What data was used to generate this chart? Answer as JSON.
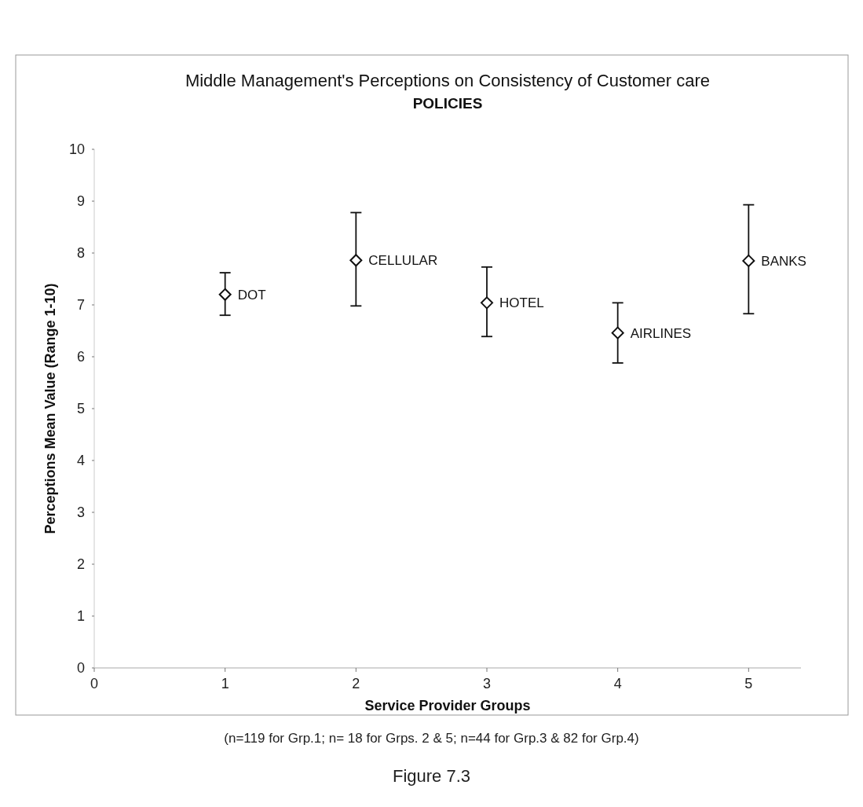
{
  "chart_data": {
    "type": "scatter",
    "title": "Middle Management's Perceptions on Consistency of Customer care\nPOLICIES",
    "xlabel": "Service Provider Groups",
    "ylabel": "Perceptions Mean Value (Range 1-10)",
    "x": [
      1,
      2,
      3,
      4,
      5
    ],
    "values": [
      7.2,
      7.86,
      7.04,
      6.46,
      7.85
    ],
    "errors": [
      [
        6.8,
        7.62
      ],
      [
        6.98,
        8.78
      ],
      [
        6.39,
        7.73
      ],
      [
        5.88,
        7.04
      ],
      [
        6.83,
        8.93
      ]
    ],
    "color": "#111111",
    "marker": "diamond",
    "grid": false,
    "xlim": [
      0,
      5.4
    ],
    "xticks": [
      0,
      1,
      2,
      3,
      4,
      5
    ],
    "ylim": [
      0,
      10
    ],
    "yticks": [
      0,
      1,
      2,
      3,
      4,
      5,
      6,
      7,
      8,
      9,
      10
    ],
    "annotations": [
      {
        "text": "DOT",
        "x": 1,
        "y": 7.2
      },
      {
        "text": "CELLULAR",
        "x": 2,
        "y": 7.86
      },
      {
        "text": "HOTEL",
        "x": 3,
        "y": 7.04
      },
      {
        "text": "AIRLINES",
        "x": 4,
        "y": 6.46
      },
      {
        "text": "BANKS",
        "x": 5,
        "y": 7.85
      },
      "(n=119 for Grp.1; n= 18 for Grps. 2 & 5; n=44 for Grp.3 & 82 for Grp.4)",
      "Figure 7.3"
    ]
  }
}
